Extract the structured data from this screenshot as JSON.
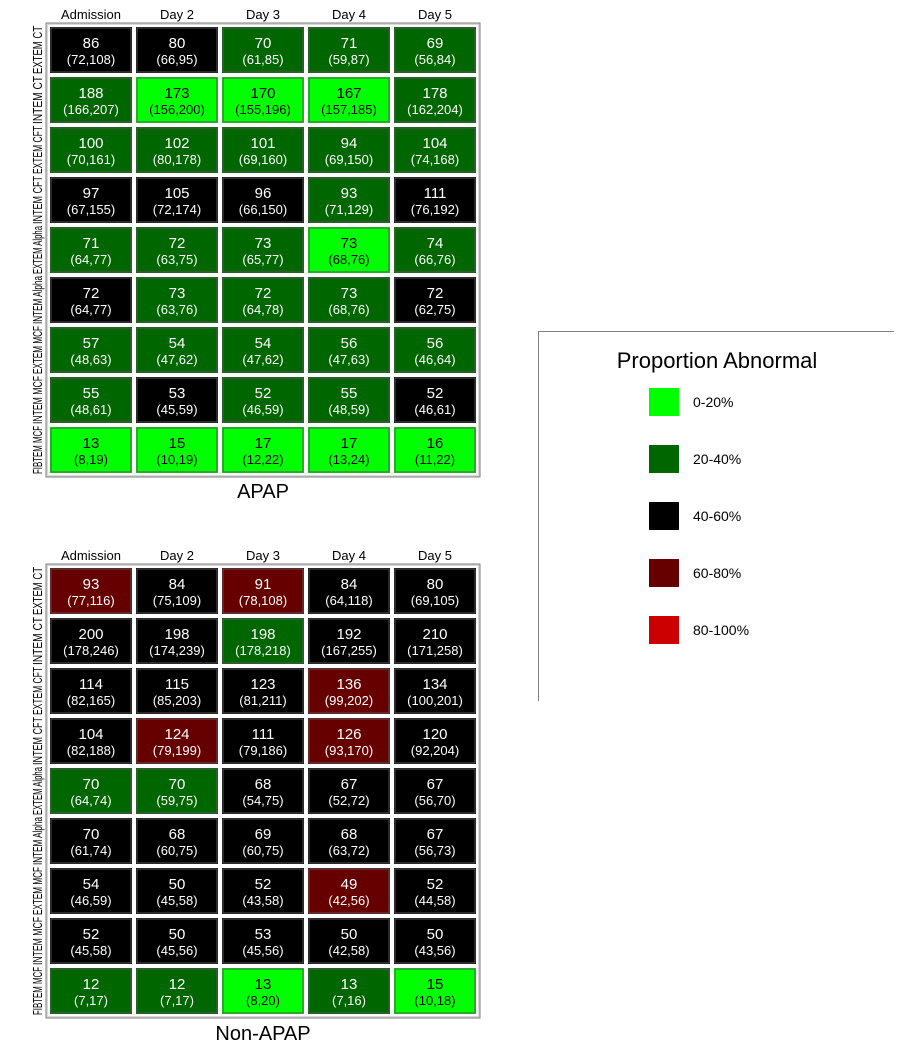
{
  "legend": {
    "title": "Proportion Abnormal",
    "items": [
      {
        "label": "0-20%",
        "color": "#00ff00"
      },
      {
        "label": "20-40%",
        "color": "#006600"
      },
      {
        "label": "40-60%",
        "color": "#000000"
      },
      {
        "label": "60-80%",
        "color": "#660000"
      },
      {
        "label": "80-100%",
        "color": "#cc0000"
      }
    ]
  },
  "chart_data": [
    {
      "type": "heatmap",
      "title": "APAP",
      "columns": [
        "Admission",
        "Day 2",
        "Day 3",
        "Day 4",
        "Day 5"
      ],
      "rows": [
        {
          "label": "EXTEM CT",
          "cells": [
            {
              "value": "86",
              "ci": "(72,108)",
              "color": "#000000"
            },
            {
              "value": "80",
              "ci": "(66,95)",
              "color": "#000000"
            },
            {
              "value": "70",
              "ci": "(61,85)",
              "color": "#006600"
            },
            {
              "value": "71",
              "ci": "(59,87)",
              "color": "#006600"
            },
            {
              "value": "69",
              "ci": "(56,84)",
              "color": "#006600"
            }
          ]
        },
        {
          "label": "INTEM CT",
          "cells": [
            {
              "value": "188",
              "ci": "(166,207)",
              "color": "#006600"
            },
            {
              "value": "173",
              "ci": "(156,200)",
              "color": "#00ff00"
            },
            {
              "value": "170",
              "ci": "(155,196)",
              "color": "#00ff00"
            },
            {
              "value": "167",
              "ci": "(157,185)",
              "color": "#00ff00"
            },
            {
              "value": "178",
              "ci": "(162,204)",
              "color": "#006600"
            }
          ]
        },
        {
          "label": "EXTEM CFT",
          "cells": [
            {
              "value": "100",
              "ci": "(70,161)",
              "color": "#006600"
            },
            {
              "value": "102",
              "ci": "(80,178)",
              "color": "#006600"
            },
            {
              "value": "101",
              "ci": "(69,160)",
              "color": "#006600"
            },
            {
              "value": "94",
              "ci": "(69,150)",
              "color": "#006600"
            },
            {
              "value": "104",
              "ci": "(74,168)",
              "color": "#006600"
            }
          ]
        },
        {
          "label": "INTEM CFT",
          "cells": [
            {
              "value": "97",
              "ci": "(67,155)",
              "color": "#000000"
            },
            {
              "value": "105",
              "ci": "(72,174)",
              "color": "#000000"
            },
            {
              "value": "96",
              "ci": "(66,150)",
              "color": "#000000"
            },
            {
              "value": "93",
              "ci": "(71,129)",
              "color": "#006600"
            },
            {
              "value": "111",
              "ci": "(76,192)",
              "color": "#000000"
            }
          ]
        },
        {
          "label": "EXTEM Alpha",
          "cells": [
            {
              "value": "71",
              "ci": "(64,77)",
              "color": "#006600"
            },
            {
              "value": "72",
              "ci": "(63,75)",
              "color": "#006600"
            },
            {
              "value": "73",
              "ci": "(65,77)",
              "color": "#006600"
            },
            {
              "value": "73",
              "ci": "(68,76)",
              "color": "#00ff00"
            },
            {
              "value": "74",
              "ci": "(66,76)",
              "color": "#006600"
            }
          ]
        },
        {
          "label": "INTEM Alpha",
          "cells": [
            {
              "value": "72",
              "ci": "(64,77)",
              "color": "#000000"
            },
            {
              "value": "73",
              "ci": "(63,76)",
              "color": "#006600"
            },
            {
              "value": "72",
              "ci": "(64,78)",
              "color": "#006600"
            },
            {
              "value": "73",
              "ci": "(68,76)",
              "color": "#006600"
            },
            {
              "value": "72",
              "ci": "(62,75)",
              "color": "#000000"
            }
          ]
        },
        {
          "label": "EXTEM MCF",
          "cells": [
            {
              "value": "57",
              "ci": "(48,63)",
              "color": "#006600"
            },
            {
              "value": "54",
              "ci": "(47,62)",
              "color": "#006600"
            },
            {
              "value": "54",
              "ci": "(47,62)",
              "color": "#006600"
            },
            {
              "value": "56",
              "ci": "(47,63)",
              "color": "#006600"
            },
            {
              "value": "56",
              "ci": "(46,64)",
              "color": "#006600"
            }
          ]
        },
        {
          "label": "INTEM MCF",
          "cells": [
            {
              "value": "55",
              "ci": "(48,61)",
              "color": "#006600"
            },
            {
              "value": "53",
              "ci": "(45,59)",
              "color": "#000000"
            },
            {
              "value": "52",
              "ci": "(46,59)",
              "color": "#006600"
            },
            {
              "value": "55",
              "ci": "(48,59)",
              "color": "#006600"
            },
            {
              "value": "52",
              "ci": "(46,61)",
              "color": "#000000"
            }
          ]
        },
        {
          "label": "FIBTEM MCF",
          "cells": [
            {
              "value": "13",
              "ci": "(8,19)",
              "color": "#00ff00"
            },
            {
              "value": "15",
              "ci": "(10,19)",
              "color": "#00ff00"
            },
            {
              "value": "17",
              "ci": "(12,22)",
              "color": "#00ff00"
            },
            {
              "value": "17",
              "ci": "(13,24)",
              "color": "#00ff00"
            },
            {
              "value": "16",
              "ci": "(11,22)",
              "color": "#00ff00"
            }
          ]
        }
      ]
    },
    {
      "type": "heatmap",
      "title": "Non-APAP",
      "columns": [
        "Admission",
        "Day 2",
        "Day 3",
        "Day 4",
        "Day 5"
      ],
      "rows": [
        {
          "label": "EXTEM CT",
          "cells": [
            {
              "value": "93",
              "ci": "(77,116)",
              "color": "#660000"
            },
            {
              "value": "84",
              "ci": "(75,109)",
              "color": "#000000"
            },
            {
              "value": "91",
              "ci": "(78,108)",
              "color": "#660000"
            },
            {
              "value": "84",
              "ci": "(64,118)",
              "color": "#000000"
            },
            {
              "value": "80",
              "ci": "(69,105)",
              "color": "#000000"
            }
          ]
        },
        {
          "label": "INTEM CT",
          "cells": [
            {
              "value": "200",
              "ci": "(178,246)",
              "color": "#000000"
            },
            {
              "value": "198",
              "ci": "(174,239)",
              "color": "#000000"
            },
            {
              "value": "198",
              "ci": "(178,218)",
              "color": "#006600"
            },
            {
              "value": "192",
              "ci": "(167,255)",
              "color": "#000000"
            },
            {
              "value": "210",
              "ci": "(171,258)",
              "color": "#000000"
            }
          ]
        },
        {
          "label": "EXTEM CFT",
          "cells": [
            {
              "value": "114",
              "ci": "(82,165)",
              "color": "#000000"
            },
            {
              "value": "115",
              "ci": "(85,203)",
              "color": "#000000"
            },
            {
              "value": "123",
              "ci": "(81,211)",
              "color": "#000000"
            },
            {
              "value": "136",
              "ci": "(99,202)",
              "color": "#660000"
            },
            {
              "value": "134",
              "ci": "(100,201)",
              "color": "#000000"
            }
          ]
        },
        {
          "label": "INTEM CFT",
          "cells": [
            {
              "value": "104",
              "ci": "(82,188)",
              "color": "#000000"
            },
            {
              "value": "124",
              "ci": "(79,199)",
              "color": "#660000"
            },
            {
              "value": "111",
              "ci": "(79,186)",
              "color": "#000000"
            },
            {
              "value": "126",
              "ci": "(93,170)",
              "color": "#660000"
            },
            {
              "value": "120",
              "ci": "(92,204)",
              "color": "#000000"
            }
          ]
        },
        {
          "label": "EXTEM Alpha",
          "cells": [
            {
              "value": "70",
              "ci": "(64,74)",
              "color": "#006600"
            },
            {
              "value": "70",
              "ci": "(59,75)",
              "color": "#006600"
            },
            {
              "value": "68",
              "ci": "(54,75)",
              "color": "#000000"
            },
            {
              "value": "67",
              "ci": "(52,72)",
              "color": "#000000"
            },
            {
              "value": "67",
              "ci": "(56,70)",
              "color": "#000000"
            }
          ]
        },
        {
          "label": "INTEM Alpha",
          "cells": [
            {
              "value": "70",
              "ci": "(61,74)",
              "color": "#000000"
            },
            {
              "value": "68",
              "ci": "(60,75)",
              "color": "#000000"
            },
            {
              "value": "69",
              "ci": "(60,75)",
              "color": "#000000"
            },
            {
              "value": "68",
              "ci": "(63,72)",
              "color": "#000000"
            },
            {
              "value": "67",
              "ci": "(56,73)",
              "color": "#000000"
            }
          ]
        },
        {
          "label": "EXTEM MCF",
          "cells": [
            {
              "value": "54",
              "ci": "(46,59)",
              "color": "#000000"
            },
            {
              "value": "50",
              "ci": "(45,58)",
              "color": "#000000"
            },
            {
              "value": "52",
              "ci": "(43,58)",
              "color": "#000000"
            },
            {
              "value": "49",
              "ci": "(42,56)",
              "color": "#660000"
            },
            {
              "value": "52",
              "ci": "(44,58)",
              "color": "#000000"
            }
          ]
        },
        {
          "label": "INTEM MCF",
          "cells": [
            {
              "value": "52",
              "ci": "(45,58)",
              "color": "#000000"
            },
            {
              "value": "50",
              "ci": "(45,56)",
              "color": "#000000"
            },
            {
              "value": "53",
              "ci": "(45,56)",
              "color": "#000000"
            },
            {
              "value": "50",
              "ci": "(42,58)",
              "color": "#000000"
            },
            {
              "value": "50",
              "ci": "(43,56)",
              "color": "#000000"
            }
          ]
        },
        {
          "label": "FIBTEM MCF",
          "cells": [
            {
              "value": "12",
              "ci": "(7,17)",
              "color": "#006600"
            },
            {
              "value": "12",
              "ci": "(7,17)",
              "color": "#006600"
            },
            {
              "value": "13",
              "ci": "(8,20)",
              "color": "#00ff00"
            },
            {
              "value": "13",
              "ci": "(7,16)",
              "color": "#006600"
            },
            {
              "value": "15",
              "ci": "(10,18)",
              "color": "#00ff00"
            }
          ]
        }
      ]
    }
  ]
}
